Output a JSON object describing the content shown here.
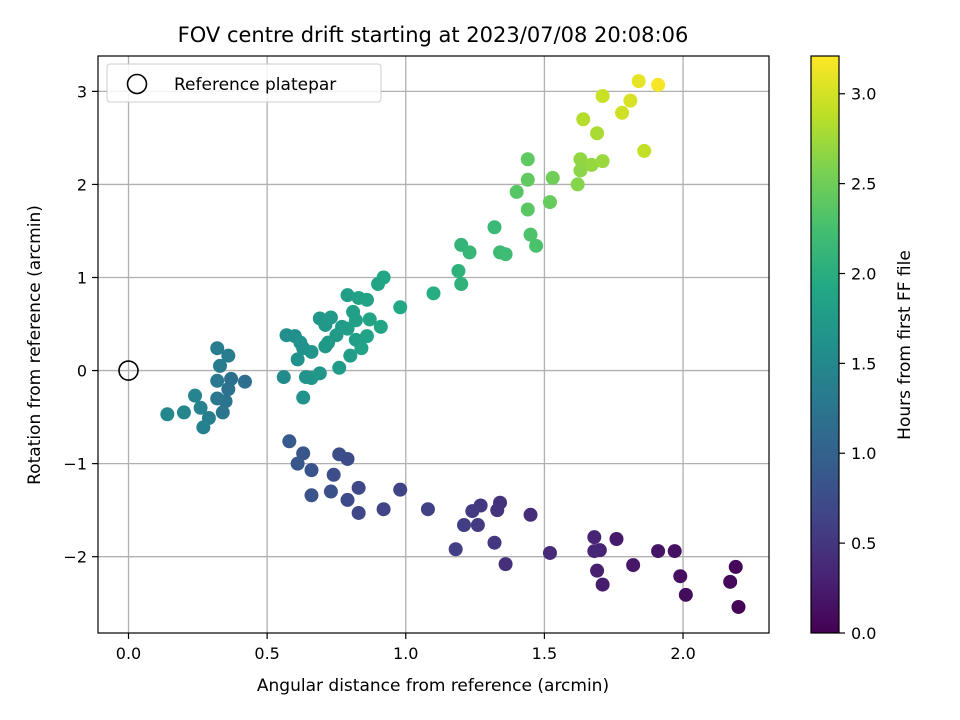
{
  "chart_data": {
    "type": "scatter",
    "title": "FOV centre drift starting at 2023/07/08 20:08:06",
    "xlabel": "Angular distance from reference (arcmin)",
    "ylabel": "Rotation from reference (arcmin)",
    "xlim": [
      -0.11,
      2.31
    ],
    "ylim": [
      -2.82,
      3.38
    ],
    "xticks": [
      0.0,
      0.5,
      1.0,
      1.5,
      2.0
    ],
    "xtick_labels": [
      "0.0",
      "0.5",
      "1.0",
      "1.5",
      "2.0"
    ],
    "yticks": [
      -2,
      -1,
      0,
      1,
      2,
      3
    ],
    "ytick_labels": [
      "−2",
      "−1",
      "0",
      "1",
      "2",
      "3"
    ],
    "grid": true,
    "legend": {
      "placement": "top-left",
      "entries": [
        "Reference platepar"
      ]
    },
    "reference_point": {
      "x": 0.0,
      "y": 0.0
    },
    "colorbar": {
      "label": "Hours from first FF file",
      "colormap": "viridis",
      "range": [
        0.0,
        3.21
      ],
      "ticks": [
        0.0,
        0.5,
        1.0,
        1.5,
        2.0,
        2.5,
        3.0
      ],
      "tick_labels": [
        "0.0",
        "0.5",
        "1.0",
        "1.5",
        "2.0",
        "2.5",
        "3.0"
      ]
    },
    "points": [
      {
        "x": 2.2,
        "y": -2.54,
        "c": 0.02
      },
      {
        "x": 2.19,
        "y": -2.11,
        "c": 0.05
      },
      {
        "x": 2.17,
        "y": -2.27,
        "c": 0.07
      },
      {
        "x": 2.01,
        "y": -2.41,
        "c": 0.1
      },
      {
        "x": 1.99,
        "y": -2.21,
        "c": 0.13
      },
      {
        "x": 1.97,
        "y": -1.94,
        "c": 0.15
      },
      {
        "x": 1.91,
        "y": -1.94,
        "c": 0.17
      },
      {
        "x": 1.82,
        "y": -2.09,
        "c": 0.2
      },
      {
        "x": 1.76,
        "y": -1.81,
        "c": 0.23
      },
      {
        "x": 1.71,
        "y": -2.3,
        "c": 0.25
      },
      {
        "x": 1.69,
        "y": -2.15,
        "c": 0.28
      },
      {
        "x": 1.7,
        "y": -1.93,
        "c": 0.3
      },
      {
        "x": 1.68,
        "y": -1.79,
        "c": 0.32
      },
      {
        "x": 1.68,
        "y": -1.94,
        "c": 0.35
      },
      {
        "x": 1.52,
        "y": -1.96,
        "c": 0.38
      },
      {
        "x": 1.45,
        "y": -1.55,
        "c": 0.4
      },
      {
        "x": 1.36,
        "y": -2.08,
        "c": 0.43
      },
      {
        "x": 1.34,
        "y": -1.42,
        "c": 0.45
      },
      {
        "x": 1.33,
        "y": -1.5,
        "c": 0.47
      },
      {
        "x": 1.32,
        "y": -1.85,
        "c": 0.5
      },
      {
        "x": 1.27,
        "y": -1.45,
        "c": 0.52
      },
      {
        "x": 1.26,
        "y": -1.66,
        "c": 0.54
      },
      {
        "x": 1.24,
        "y": -1.51,
        "c": 0.56
      },
      {
        "x": 1.21,
        "y": -1.66,
        "c": 0.58
      },
      {
        "x": 1.18,
        "y": -1.92,
        "c": 0.6
      },
      {
        "x": 1.08,
        "y": -1.49,
        "c": 0.62
      },
      {
        "x": 0.98,
        "y": -1.28,
        "c": 0.64
      },
      {
        "x": 0.92,
        "y": -1.49,
        "c": 0.66
      },
      {
        "x": 0.83,
        "y": -1.53,
        "c": 0.68
      },
      {
        "x": 0.83,
        "y": -1.26,
        "c": 0.7
      },
      {
        "x": 0.79,
        "y": -1.39,
        "c": 0.72
      },
      {
        "x": 0.79,
        "y": -0.95,
        "c": 0.74
      },
      {
        "x": 0.76,
        "y": -0.9,
        "c": 0.76
      },
      {
        "x": 0.74,
        "y": -1.12,
        "c": 0.78
      },
      {
        "x": 0.73,
        "y": -1.3,
        "c": 0.8
      },
      {
        "x": 0.66,
        "y": -1.34,
        "c": 0.82
      },
      {
        "x": 0.66,
        "y": -1.07,
        "c": 0.84
      },
      {
        "x": 0.63,
        "y": -0.89,
        "c": 0.86
      },
      {
        "x": 0.61,
        "y": -1.0,
        "c": 0.88
      },
      {
        "x": 0.58,
        "y": -0.76,
        "c": 0.92
      },
      {
        "x": 0.42,
        "y": -0.12,
        "c": 1.15
      },
      {
        "x": 0.37,
        "y": -0.09,
        "c": 1.18
      },
      {
        "x": 0.36,
        "y": -0.2,
        "c": 1.21
      },
      {
        "x": 0.35,
        "y": -0.33,
        "c": 1.23
      },
      {
        "x": 0.34,
        "y": -0.45,
        "c": 1.25
      },
      {
        "x": 0.32,
        "y": -0.3,
        "c": 1.27
      },
      {
        "x": 0.32,
        "y": -0.11,
        "c": 1.29
      },
      {
        "x": 0.33,
        "y": 0.05,
        "c": 1.32
      },
      {
        "x": 0.32,
        "y": 0.24,
        "c": 1.34
      },
      {
        "x": 0.36,
        "y": 0.16,
        "c": 1.36
      },
      {
        "x": 0.29,
        "y": -0.51,
        "c": 1.38
      },
      {
        "x": 0.27,
        "y": -0.61,
        "c": 1.4
      },
      {
        "x": 0.26,
        "y": -0.4,
        "c": 1.42
      },
      {
        "x": 0.24,
        "y": -0.27,
        "c": 1.44
      },
      {
        "x": 0.2,
        "y": -0.45,
        "c": 1.46
      },
      {
        "x": 0.14,
        "y": -0.47,
        "c": 1.48
      },
      {
        "x": 0.56,
        "y": -0.07,
        "c": 1.55
      },
      {
        "x": 0.57,
        "y": 0.38,
        "c": 1.57
      },
      {
        "x": 0.6,
        "y": 0.37,
        "c": 1.59
      },
      {
        "x": 0.61,
        "y": 0.12,
        "c": 1.61
      },
      {
        "x": 0.62,
        "y": 0.3,
        "c": 1.62
      },
      {
        "x": 0.63,
        "y": 0.24,
        "c": 1.63
      },
      {
        "x": 0.63,
        "y": -0.29,
        "c": 1.64
      },
      {
        "x": 0.64,
        "y": -0.07,
        "c": 1.65
      },
      {
        "x": 0.66,
        "y": -0.08,
        "c": 1.66
      },
      {
        "x": 0.66,
        "y": 0.2,
        "c": 1.67
      },
      {
        "x": 0.69,
        "y": 0.56,
        "c": 1.68
      },
      {
        "x": 0.69,
        "y": -0.03,
        "c": 1.69
      },
      {
        "x": 0.71,
        "y": 0.26,
        "c": 1.7
      },
      {
        "x": 0.71,
        "y": 0.49,
        "c": 1.71
      },
      {
        "x": 0.72,
        "y": 0.3,
        "c": 1.72
      },
      {
        "x": 0.73,
        "y": 0.57,
        "c": 1.73
      },
      {
        "x": 0.75,
        "y": 0.38,
        "c": 1.74
      },
      {
        "x": 0.76,
        "y": 0.03,
        "c": 1.75
      },
      {
        "x": 0.77,
        "y": 0.47,
        "c": 1.76
      },
      {
        "x": 0.79,
        "y": 0.81,
        "c": 1.77
      },
      {
        "x": 0.79,
        "y": 0.45,
        "c": 1.78
      },
      {
        "x": 0.8,
        "y": 0.16,
        "c": 1.79
      },
      {
        "x": 0.81,
        "y": 0.63,
        "c": 1.8
      },
      {
        "x": 0.82,
        "y": 0.54,
        "c": 1.81
      },
      {
        "x": 0.82,
        "y": 0.33,
        "c": 1.82
      },
      {
        "x": 0.83,
        "y": 0.78,
        "c": 1.83
      },
      {
        "x": 0.84,
        "y": 0.24,
        "c": 1.84
      },
      {
        "x": 0.86,
        "y": 0.37,
        "c": 1.85
      },
      {
        "x": 0.86,
        "y": 0.76,
        "c": 1.86
      },
      {
        "x": 0.87,
        "y": 0.55,
        "c": 1.87
      },
      {
        "x": 0.9,
        "y": 0.93,
        "c": 1.88
      },
      {
        "x": 0.91,
        "y": 0.47,
        "c": 1.89
      },
      {
        "x": 0.92,
        "y": 1.0,
        "c": 1.9
      },
      {
        "x": 0.98,
        "y": 0.68,
        "c": 1.92
      },
      {
        "x": 1.1,
        "y": 0.83,
        "c": 1.98
      },
      {
        "x": 1.19,
        "y": 1.07,
        "c": 2.05
      },
      {
        "x": 1.2,
        "y": 0.93,
        "c": 2.07
      },
      {
        "x": 1.2,
        "y": 1.35,
        "c": 2.1
      },
      {
        "x": 1.23,
        "y": 1.27,
        "c": 2.12
      },
      {
        "x": 1.32,
        "y": 1.54,
        "c": 2.16
      },
      {
        "x": 1.34,
        "y": 1.27,
        "c": 2.18
      },
      {
        "x": 1.36,
        "y": 1.25,
        "c": 2.2
      },
      {
        "x": 1.4,
        "y": 1.92,
        "c": 2.35
      },
      {
        "x": 1.44,
        "y": 2.27,
        "c": 2.4
      },
      {
        "x": 1.44,
        "y": 2.05,
        "c": 2.42
      },
      {
        "x": 1.44,
        "y": 1.73,
        "c": 2.38
      },
      {
        "x": 1.45,
        "y": 1.46,
        "c": 2.3
      },
      {
        "x": 1.47,
        "y": 1.34,
        "c": 2.28
      },
      {
        "x": 1.52,
        "y": 1.81,
        "c": 2.45
      },
      {
        "x": 1.53,
        "y": 2.07,
        "c": 2.5
      },
      {
        "x": 1.62,
        "y": 2.0,
        "c": 2.62
      },
      {
        "x": 1.63,
        "y": 2.15,
        "c": 2.65
      },
      {
        "x": 1.63,
        "y": 2.27,
        "c": 2.68
      },
      {
        "x": 1.64,
        "y": 2.7,
        "c": 2.85
      },
      {
        "x": 1.67,
        "y": 2.21,
        "c": 2.7
      },
      {
        "x": 1.69,
        "y": 2.55,
        "c": 2.8
      },
      {
        "x": 1.71,
        "y": 2.25,
        "c": 2.72
      },
      {
        "x": 1.71,
        "y": 2.95,
        "c": 2.95
      },
      {
        "x": 1.78,
        "y": 2.77,
        "c": 2.98
      },
      {
        "x": 1.81,
        "y": 2.9,
        "c": 3.02
      },
      {
        "x": 1.84,
        "y": 3.11,
        "c": 3.1
      },
      {
        "x": 1.86,
        "y": 2.36,
        "c": 2.92
      },
      {
        "x": 1.91,
        "y": 3.07,
        "c": 3.18
      }
    ]
  }
}
